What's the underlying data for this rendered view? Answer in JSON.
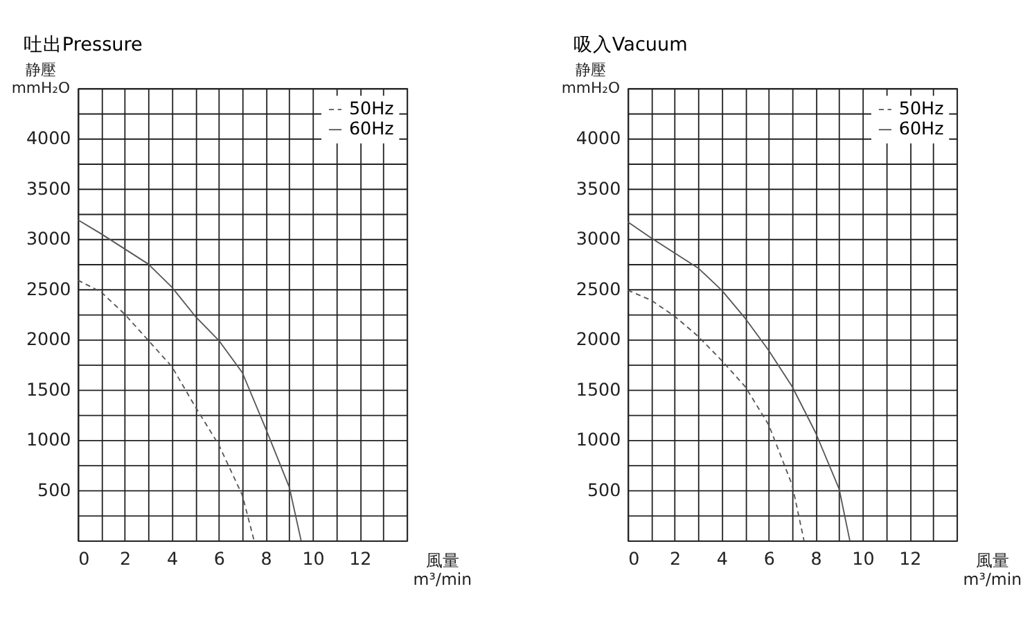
{
  "chart_data": [
    {
      "type": "line",
      "title": "吐出Pressure",
      "xlabel": "風量\nm³/min",
      "ylabel": "静壓\nmmH₂O",
      "xlim": [
        0,
        14
      ],
      "ylim": [
        0,
        4500
      ],
      "xticks": [
        0,
        {
          "value": 1,
          "label": null
        },
        2,
        {
          "value": 3,
          "label": null
        },
        4,
        {
          "value": 5,
          "label": null
        },
        6,
        {
          "value": 7,
          "label": null
        },
        8,
        {
          "value": 9,
          "label": null
        },
        10,
        {
          "value": 11,
          "label": null
        },
        12,
        {
          "value": 13,
          "label": null
        },
        {
          "value": 14,
          "label": null
        }
      ],
      "yticks": [
        {
          "value": 0,
          "label": null
        },
        {
          "value": 250,
          "label": null
        },
        500,
        {
          "value": 750,
          "label": null
        },
        1000,
        {
          "value": 1250,
          "label": null
        },
        1500,
        {
          "value": 1750,
          "label": null
        },
        2000,
        {
          "value": 2250,
          "label": null
        },
        2500,
        {
          "value": 2750,
          "label": null
        },
        3000,
        {
          "value": 3250,
          "label": null
        },
        3500,
        {
          "value": 3750,
          "label": null
        },
        4000,
        {
          "value": 4250,
          "label": null
        },
        {
          "value": 4500,
          "label": null
        }
      ],
      "grid": true,
      "legend": "top right",
      "series": [
        {
          "name": "50Hz",
          "color": "#555555",
          "line_style": "dashed",
          "x": [
            0,
            1,
            2,
            3,
            4,
            5,
            6,
            7,
            7.5
          ],
          "values": [
            2590,
            2470,
            2250,
            1990,
            1730,
            1330,
            950,
            450,
            0
          ]
        },
        {
          "name": "60Hz",
          "color": "#555555",
          "line_style": "solid",
          "x": [
            0,
            1,
            3,
            4,
            5,
            6,
            7,
            8,
            9,
            9.5
          ],
          "values": [
            3190,
            3050,
            2750,
            2520,
            2230,
            1990,
            1670,
            1110,
            530,
            0
          ]
        }
      ]
    },
    {
      "type": "line",
      "title": "吸入Vacuum",
      "xlabel": "風量\nm³/min",
      "ylabel": "静壓\nmmH₂O",
      "xlim": [
        0,
        14
      ],
      "ylim": [
        0,
        4500
      ],
      "xticks": [
        0,
        {
          "value": 1,
          "label": null
        },
        2,
        {
          "value": 3,
          "label": null
        },
        4,
        {
          "value": 5,
          "label": null
        },
        6,
        {
          "value": 7,
          "label": null
        },
        8,
        {
          "value": 9,
          "label": null
        },
        10,
        {
          "value": 11,
          "label": null
        },
        12,
        {
          "value": 13,
          "label": null
        },
        {
          "value": 14,
          "label": null
        }
      ],
      "yticks": [
        {
          "value": 0,
          "label": null
        },
        {
          "value": 250,
          "label": null
        },
        500,
        {
          "value": 750,
          "label": null
        },
        1000,
        {
          "value": 1250,
          "label": null
        },
        1500,
        {
          "value": 1750,
          "label": null
        },
        2000,
        {
          "value": 2250,
          "label": null
        },
        2500,
        {
          "value": 2750,
          "label": null
        },
        3000,
        {
          "value": 3250,
          "label": null
        },
        3500,
        {
          "value": 3750,
          "label": null
        },
        4000,
        {
          "value": 4250,
          "label": null
        },
        {
          "value": 4500,
          "label": null
        }
      ],
      "grid": true,
      "legend": "top right",
      "series": [
        {
          "name": "50Hz",
          "color": "#555555",
          "line_style": "dashed",
          "x": [
            0,
            1,
            2,
            3,
            4,
            5,
            6,
            7,
            7.5
          ],
          "values": [
            2490,
            2390,
            2230,
            2030,
            1790,
            1530,
            1150,
            550,
            0
          ]
        },
        {
          "name": "60Hz",
          "color": "#555555",
          "line_style": "solid",
          "x": [
            0,
            1,
            3,
            4,
            5,
            6,
            7,
            8,
            9,
            9.45
          ],
          "values": [
            3170,
            3010,
            2710,
            2490,
            2210,
            1890,
            1530,
            1070,
            510,
            0
          ]
        }
      ]
    }
  ]
}
